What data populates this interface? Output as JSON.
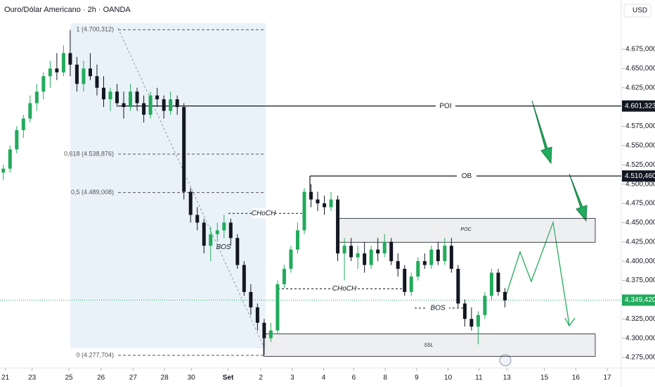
{
  "chart_data": {
    "type": "candlestick",
    "title": "Ouro/Dólar Americano · 2h · OANDA",
    "currency": "USD",
    "up_color": "#22ab5c",
    "down_color": "#131722",
    "ylim": [
      4.2613,
      4.7389
    ],
    "yticks": [
      {
        "value": 4.275,
        "label": "4.275,000"
      },
      {
        "value": 4.3,
        "label": "4.300,000"
      },
      {
        "value": 4.325,
        "label": "4.325,000"
      },
      {
        "value": 4.35,
        "label": "4.350,000"
      },
      {
        "value": 4.375,
        "label": "4.375,000"
      },
      {
        "value": 4.4,
        "label": "4.400,000"
      },
      {
        "value": 4.425,
        "label": "4.425,000"
      },
      {
        "value": 4.45,
        "label": "4.450,000"
      },
      {
        "value": 4.475,
        "label": "4.475,000"
      },
      {
        "value": 4.5,
        "label": "4.500,000"
      },
      {
        "value": 4.525,
        "label": "4.525,000"
      },
      {
        "value": 4.55,
        "label": "4.550,000"
      },
      {
        "value": 4.575,
        "label": "4.575,000"
      },
      {
        "value": 4.6,
        "label": "4.600,000"
      },
      {
        "value": 4.625,
        "label": "4.625,000"
      },
      {
        "value": 4.65,
        "label": "4.650,000"
      },
      {
        "value": 4.675,
        "label": "4.675,000"
      }
    ],
    "xlim": [
      0,
      93
    ],
    "xticks": [
      {
        "value": 0.8,
        "label": "21"
      },
      {
        "value": 4.8,
        "label": "23"
      },
      {
        "value": 10.3,
        "label": "25"
      },
      {
        "value": 15.1,
        "label": "26"
      },
      {
        "value": 19.9,
        "label": "27"
      },
      {
        "value": 24.6,
        "label": "28"
      },
      {
        "value": 28.6,
        "label": "30"
      },
      {
        "value": 34.1,
        "label": "Set"
      },
      {
        "value": 39,
        "label": "2"
      },
      {
        "value": 43.7,
        "label": "3"
      },
      {
        "value": 48.4,
        "label": "4"
      },
      {
        "value": 52.9,
        "label": "6"
      },
      {
        "value": 57.6,
        "label": "8"
      },
      {
        "value": 62.3,
        "label": "9"
      },
      {
        "value": 67,
        "label": "10"
      },
      {
        "value": 71.6,
        "label": "11"
      },
      {
        "value": 75.8,
        "label": "13"
      },
      {
        "value": 81.4,
        "label": "15"
      },
      {
        "value": 86.1,
        "label": "16"
      },
      {
        "value": 90.8,
        "label": "17"
      }
    ],
    "ohlc": [
      [
        4.515,
        4.525,
        4.505,
        4.52
      ],
      [
        4.52,
        4.55,
        4.515,
        4.545
      ],
      [
        4.545,
        4.575,
        4.54,
        4.57
      ],
      [
        4.57,
        4.59,
        4.56,
        4.585
      ],
      [
        4.585,
        4.615,
        4.58,
        4.605
      ],
      [
        4.605,
        4.63,
        4.595,
        4.62
      ],
      [
        4.62,
        4.645,
        4.61,
        4.64
      ],
      [
        4.64,
        4.66,
        4.625,
        4.65
      ],
      [
        4.65,
        4.67,
        4.635,
        4.645
      ],
      [
        4.645,
        4.68,
        4.64,
        4.67
      ],
      [
        4.67,
        4.7,
        4.64,
        4.655
      ],
      [
        4.655,
        4.665,
        4.62,
        4.63
      ],
      [
        4.63,
        4.66,
        4.62,
        4.65
      ],
      [
        4.65,
        4.67,
        4.635,
        4.64
      ],
      [
        4.64,
        4.655,
        4.615,
        4.625
      ],
      [
        4.625,
        4.64,
        4.6,
        4.61
      ],
      [
        4.61,
        4.625,
        4.595,
        4.62
      ],
      [
        4.62,
        4.63,
        4.6,
        4.605
      ],
      [
        4.605,
        4.62,
        4.585,
        4.6
      ],
      [
        4.6,
        4.63,
        4.595,
        4.62
      ],
      [
        4.62,
        4.625,
        4.595,
        4.605
      ],
      [
        4.605,
        4.615,
        4.58,
        4.59
      ],
      [
        4.59,
        4.62,
        4.585,
        4.615
      ],
      [
        4.615,
        4.625,
        4.6,
        4.61
      ],
      [
        4.61,
        4.615,
        4.585,
        4.595
      ],
      [
        4.595,
        4.62,
        4.59,
        4.61
      ],
      [
        4.61,
        4.615,
        4.59,
        4.6
      ],
      [
        4.6,
        4.605,
        4.48,
        4.49
      ],
      [
        4.49,
        4.495,
        4.45,
        4.46
      ],
      [
        4.46,
        4.47,
        4.44,
        4.45
      ],
      [
        4.45,
        4.455,
        4.41,
        4.42
      ],
      [
        4.42,
        4.445,
        4.4,
        4.435
      ],
      [
        4.435,
        4.45,
        4.425,
        4.44
      ],
      [
        4.44,
        4.46,
        4.43,
        4.45
      ],
      [
        4.45,
        4.455,
        4.42,
        4.43
      ],
      [
        4.43,
        4.435,
        4.39,
        4.395
      ],
      [
        4.395,
        4.4,
        4.355,
        4.36
      ],
      [
        4.36,
        4.37,
        4.33,
        4.34
      ],
      [
        4.34,
        4.345,
        4.31,
        4.32
      ],
      [
        4.32,
        4.325,
        4.278,
        4.3
      ],
      [
        4.3,
        4.32,
        4.295,
        4.31
      ],
      [
        4.31,
        4.375,
        4.305,
        4.37
      ],
      [
        4.37,
        4.395,
        4.365,
        4.39
      ],
      [
        4.39,
        4.42,
        4.385,
        4.415
      ],
      [
        4.415,
        4.45,
        4.41,
        4.44
      ],
      [
        4.44,
        4.495,
        4.435,
        4.49
      ],
      [
        4.49,
        4.5,
        4.47,
        4.48
      ],
      [
        4.48,
        4.49,
        4.465,
        4.475
      ],
      [
        4.475,
        4.485,
        4.46,
        4.47
      ],
      [
        4.47,
        4.49,
        4.465,
        4.48
      ],
      [
        4.48,
        4.485,
        4.4,
        4.41
      ],
      [
        4.41,
        4.43,
        4.375,
        4.42
      ],
      [
        4.42,
        4.43,
        4.4,
        4.405
      ],
      [
        4.405,
        4.42,
        4.39,
        4.41
      ],
      [
        4.41,
        4.425,
        4.385,
        4.395
      ],
      [
        4.395,
        4.42,
        4.39,
        4.415
      ],
      [
        4.415,
        4.43,
        4.4,
        4.41
      ],
      [
        4.41,
        4.435,
        4.405,
        4.425
      ],
      [
        4.425,
        4.43,
        4.395,
        4.4
      ],
      [
        4.4,
        4.41,
        4.38,
        4.39
      ],
      [
        4.39,
        4.395,
        4.355,
        4.36
      ],
      [
        4.36,
        4.385,
        4.355,
        4.38
      ],
      [
        4.38,
        4.405,
        4.375,
        4.4
      ],
      [
        4.4,
        4.41,
        4.39,
        4.395
      ],
      [
        4.395,
        4.42,
        4.39,
        4.415
      ],
      [
        4.415,
        4.425,
        4.395,
        4.4
      ],
      [
        4.4,
        4.43,
        4.395,
        4.42
      ],
      [
        4.42,
        4.43,
        4.385,
        4.39
      ],
      [
        4.39,
        4.395,
        4.34,
        4.345
      ],
      [
        4.345,
        4.35,
        4.315,
        4.325
      ],
      [
        4.325,
        4.34,
        4.31,
        4.315
      ],
      [
        4.315,
        4.335,
        4.292,
        4.33
      ],
      [
        4.33,
        4.36,
        4.325,
        4.355
      ],
      [
        4.355,
        4.39,
        4.35,
        4.385
      ],
      [
        4.385,
        4.39,
        4.355,
        4.36
      ],
      [
        4.36,
        4.365,
        4.34,
        4.349
      ]
    ],
    "fib_levels": [
      {
        "label": "1 (4.700,312)",
        "value": 4.700312
      },
      {
        "label": "0,618 (4.538,876)",
        "value": 4.538876
      },
      {
        "label": "0,5 (4.489,008)",
        "value": 4.489008
      },
      {
        "label": "0 (4.277,704)",
        "value": 4.277704
      }
    ],
    "levels": [
      {
        "name": "POI",
        "value": 4.601323,
        "label": "4.601,323"
      },
      {
        "name": "OB",
        "value": 4.51046,
        "label": "4.510,460"
      }
    ],
    "last_price": {
      "value": 4.34942,
      "label": "4.349,420"
    },
    "zones": [
      {
        "name": "POC",
        "range": [
          4.4245,
          4.4555
        ]
      },
      {
        "name": "SSL",
        "range": [
          4.2765,
          4.3055
        ]
      }
    ],
    "markers": [
      {
        "name": "CHoCH",
        "value": 4.462
      },
      {
        "name": "BOS",
        "value": 4.418
      },
      {
        "name": "CHoCH",
        "value": 4.364
      },
      {
        "name": "BOS",
        "value": 4.339
      }
    ]
  }
}
